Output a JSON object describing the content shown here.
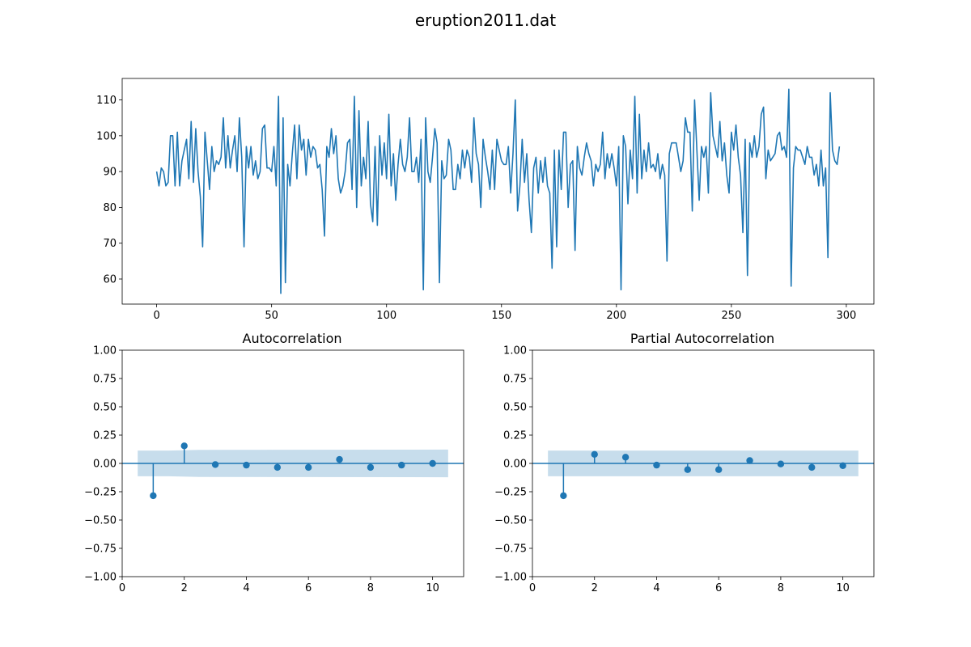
{
  "figure": {
    "title": "eruption2011.dat"
  },
  "colors": {
    "line": "#1f77b4",
    "band": "#1f77b4",
    "axes": "#000000"
  },
  "chart_data": [
    {
      "type": "line",
      "title": "",
      "xlabel": "",
      "ylabel": "",
      "xlim": [
        -15,
        312
      ],
      "ylim": [
        53,
        116
      ],
      "xticks": [
        0,
        50,
        100,
        150,
        200,
        250,
        300
      ],
      "yticks": [
        60,
        70,
        80,
        90,
        100,
        110
      ],
      "x_start": 0,
      "x_step": 1,
      "series": [
        {
          "values": [
            90,
            86,
            91,
            90,
            86,
            87,
            100,
            100,
            86,
            101,
            86,
            93,
            96,
            99,
            88,
            104,
            87,
            102,
            90,
            83,
            69,
            101,
            93,
            85,
            97,
            90,
            93,
            92,
            94,
            105,
            91,
            100,
            91,
            96,
            100,
            90,
            105,
            94,
            69,
            97,
            91,
            97,
            89,
            93,
            88,
            90,
            102,
            103,
            91,
            91,
            90,
            97,
            86,
            111,
            56,
            105,
            59,
            92,
            86,
            95,
            103,
            88,
            103,
            96,
            99,
            89,
            99,
            94,
            97,
            96,
            91,
            92,
            85,
            72,
            97,
            94,
            102,
            95,
            100,
            88,
            84,
            86,
            90,
            98,
            99,
            85,
            111,
            80,
            107,
            86,
            94,
            88,
            104,
            81,
            76,
            97,
            75,
            100,
            89,
            98,
            88,
            106,
            86,
            95,
            82,
            92,
            99,
            92,
            90,
            94,
            105,
            90,
            90,
            94,
            87,
            99,
            57,
            105,
            90,
            87,
            94,
            102,
            98,
            59,
            93,
            88,
            89,
            99,
            96,
            85,
            85,
            92,
            88,
            96,
            91,
            96,
            94,
            87,
            105,
            95,
            92,
            80,
            99,
            94,
            90,
            85,
            96,
            85,
            99,
            96,
            93,
            92,
            92,
            97,
            84,
            95,
            110,
            79,
            86,
            99,
            87,
            95,
            82,
            73,
            91,
            94,
            84,
            93,
            87,
            94,
            86,
            84,
            63,
            96,
            69,
            96,
            85,
            101,
            101,
            80,
            92,
            93,
            68,
            97,
            91,
            89,
            94,
            98,
            95,
            93,
            86,
            92,
            90,
            92,
            101,
            88,
            95,
            91,
            95,
            91,
            86,
            97,
            57,
            100,
            97,
            81,
            96,
            88,
            111,
            84,
            106,
            88,
            96,
            90,
            98,
            91,
            92,
            90,
            95,
            88,
            92,
            89,
            65,
            95,
            98,
            98,
            98,
            94,
            90,
            93,
            105,
            101,
            101,
            79,
            110,
            96,
            82,
            97,
            94,
            97,
            84,
            112,
            100,
            97,
            94,
            104,
            93,
            98,
            89,
            84,
            101,
            96,
            103,
            94,
            89,
            73,
            99,
            61,
            98,
            94,
            100,
            94,
            97,
            106,
            108,
            88,
            96,
            93,
            94,
            95,
            100,
            101,
            96,
            97,
            94,
            113,
            58,
            91,
            97,
            96,
            96,
            94,
            92,
            97,
            94,
            94,
            89,
            92,
            86,
            96,
            86,
            91,
            66,
            112,
            96,
            93,
            92,
            97
          ]
        }
      ]
    },
    {
      "type": "stem",
      "title": "Autocorrelation",
      "xlabel": "",
      "ylabel": "",
      "xlim": [
        0,
        11
      ],
      "ylim": [
        -1.0,
        1.0
      ],
      "xticks": [
        0,
        2,
        4,
        6,
        8,
        10
      ],
      "yticks": [
        -1.0,
        -0.75,
        -0.5,
        -0.25,
        0.0,
        0.25,
        0.5,
        0.75,
        1.0
      ],
      "tick_labels_y": [
        "−1.00",
        "−0.75",
        "−0.50",
        "−0.25",
        "0.00",
        "0.25",
        "0.50",
        "0.75",
        "1.00"
      ],
      "lags": [
        1,
        2,
        3,
        4,
        5,
        6,
        7,
        8,
        9,
        10
      ],
      "values": [
        -0.285,
        0.155,
        -0.01,
        -0.015,
        -0.035,
        -0.035,
        0.035,
        -0.035,
        -0.015,
        0.0
      ],
      "confidence_band": {
        "x": [
          0.5,
          1.5,
          2.5,
          10.5
        ],
        "upper": [
          0.113,
          0.113,
          0.12,
          0.122
        ],
        "lower": [
          -0.113,
          -0.113,
          -0.12,
          -0.122
        ]
      }
    },
    {
      "type": "stem",
      "title": "Partial Autocorrelation",
      "xlabel": "",
      "ylabel": "",
      "xlim": [
        0,
        11
      ],
      "ylim": [
        -1.0,
        1.0
      ],
      "xticks": [
        0,
        2,
        4,
        6,
        8,
        10
      ],
      "yticks": [
        -1.0,
        -0.75,
        -0.5,
        -0.25,
        0.0,
        0.25,
        0.5,
        0.75,
        1.0
      ],
      "tick_labels_y": [
        "−1.00",
        "−0.75",
        "−0.50",
        "−0.25",
        "0.00",
        "0.25",
        "0.50",
        "0.75",
        "1.00"
      ],
      "lags": [
        1,
        2,
        3,
        4,
        5,
        6,
        7,
        8,
        9,
        10
      ],
      "values": [
        -0.285,
        0.08,
        0.055,
        -0.015,
        -0.055,
        -0.055,
        0.025,
        -0.005,
        -0.035,
        -0.02
      ],
      "confidence_band": {
        "x": [
          0.5,
          10.5
        ],
        "upper": [
          0.113,
          0.113
        ],
        "lower": [
          -0.113,
          -0.113
        ]
      }
    }
  ]
}
